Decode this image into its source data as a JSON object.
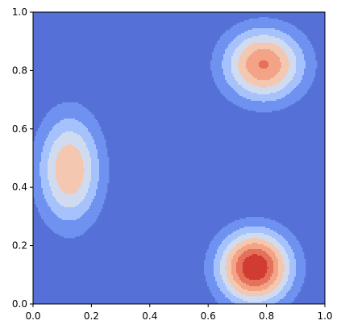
{
  "chart_data": {
    "type": "contourf",
    "title": "",
    "xlabel": "",
    "ylabel": "",
    "xlim": [
      0,
      1
    ],
    "ylim": [
      0,
      1
    ],
    "colormap": "coolwarm",
    "grid": false,
    "legend": "none",
    "x_ticks": [
      "0.0",
      "0.2",
      "0.4",
      "0.6",
      "0.8",
      "1.0"
    ],
    "y_ticks": [
      "0.0",
      "0.2",
      "0.4",
      "0.6",
      "0.8",
      "1.0"
    ],
    "levels": 8,
    "background_color": "#5571d8",
    "level_colors": [
      "#5571d8",
      "#6f92f1",
      "#a5c2fd",
      "#d0dbf0",
      "#f3c7b0",
      "#f3a386",
      "#e5715a",
      "#d03c32"
    ],
    "peaks": [
      {
        "x": 0.125,
        "y": 0.46,
        "sx": 0.075,
        "sy": 0.13,
        "amp": 0.62
      },
      {
        "x": 0.79,
        "y": 0.82,
        "sx": 0.095,
        "sy": 0.085,
        "amp": 0.76
      },
      {
        "x": 0.76,
        "y": 0.125,
        "sx": 0.085,
        "sy": 0.085,
        "amp": 1.0
      }
    ]
  }
}
